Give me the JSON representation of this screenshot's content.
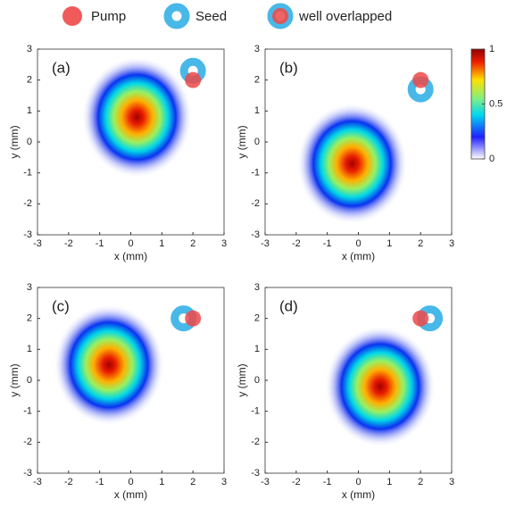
{
  "legend": {
    "entries": [
      {
        "name": "Pump",
        "color": "#f04848"
      },
      {
        "name": "Seed",
        "color": "#48b8e8"
      },
      {
        "name": "well overlapped",
        "color": "#f04848"
      }
    ]
  },
  "colorbar": {
    "ylim": [
      0,
      1
    ],
    "yticks": [
      0,
      0.5,
      1
    ]
  },
  "chart_data": [
    {
      "type": "heatmap",
      "label": "(a)",
      "x_label": "x (mm)",
      "y_label": "y (mm)",
      "xlim": [
        -3,
        3
      ],
      "ylim": [
        -3,
        3
      ],
      "xticks": [
        -3,
        -2,
        -1,
        0,
        1,
        2,
        3
      ],
      "yticks": [
        -3,
        -2,
        -1,
        0,
        1,
        2,
        3
      ],
      "beam_center": {
        "x": 0.2,
        "y": 0.8
      },
      "pump": {
        "x": 2,
        "y": 2.0
      },
      "seed": {
        "x": 2,
        "y": 2.3
      }
    },
    {
      "type": "heatmap",
      "label": "(b)",
      "x_label": "x (mm)",
      "y_label": "y (mm)",
      "xlim": [
        -3,
        3
      ],
      "ylim": [
        -3,
        3
      ],
      "xticks": [
        -3,
        -2,
        -1,
        0,
        1,
        2,
        3
      ],
      "yticks": [
        -3,
        -2,
        -1,
        0,
        1,
        2,
        3
      ],
      "beam_center": {
        "x": -0.2,
        "y": -0.7
      },
      "pump": {
        "x": 2,
        "y": 2.0
      },
      "seed": {
        "x": 2,
        "y": 1.7
      }
    },
    {
      "type": "heatmap",
      "label": "(c)",
      "x_label": "x (mm)",
      "y_label": "y (mm)",
      "xlim": [
        -3,
        3
      ],
      "ylim": [
        -3,
        3
      ],
      "xticks": [
        -3,
        -2,
        -1,
        0,
        1,
        2,
        3
      ],
      "yticks": [
        -3,
        -2,
        -1,
        0,
        1,
        2,
        3
      ],
      "beam_center": {
        "x": -0.7,
        "y": 0.5
      },
      "pump": {
        "x": 2,
        "y": 2.0
      },
      "seed": {
        "x": 1.7,
        "y": 2.0
      }
    },
    {
      "type": "heatmap",
      "label": "(d)",
      "x_label": "x (mm)",
      "y_label": "y (mm)",
      "xlim": [
        -3,
        3
      ],
      "ylim": [
        -3,
        3
      ],
      "xticks": [
        -3,
        -2,
        -1,
        0,
        1,
        2,
        3
      ],
      "yticks": [
        -3,
        -2,
        -1,
        0,
        1,
        2,
        3
      ],
      "beam_center": {
        "x": 0.7,
        "y": -0.2
      },
      "pump": {
        "x": 2,
        "y": 2.0
      },
      "seed": {
        "x": 2.3,
        "y": 2.0
      }
    }
  ]
}
